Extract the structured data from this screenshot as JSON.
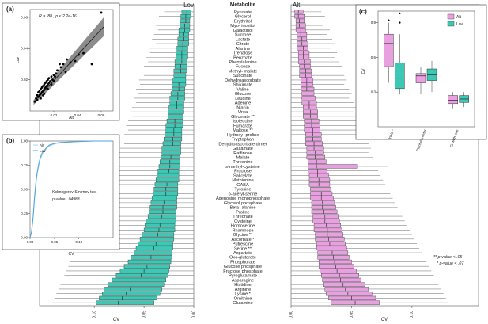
{
  "chart_data": [
    {
      "panel": "(a)",
      "type": "scatter",
      "xlabel": "Alt",
      "ylabel": "Lov",
      "annotation": "R = .88 , p < 2.2e-16",
      "xlim": [
        0,
        0.07
      ],
      "ylim": [
        0,
        0.065
      ],
      "xticks": [
        "0.02",
        "0.04",
        "0.06"
      ],
      "yticks": [
        "0.02",
        "0.04",
        "0.06"
      ],
      "fit": {
        "slope": 0.82,
        "intercept": 0.003
      },
      "points": [
        [
          0.004,
          0.006
        ],
        [
          0.005,
          0.008
        ],
        [
          0.006,
          0.007
        ],
        [
          0.006,
          0.01
        ],
        [
          0.007,
          0.009
        ],
        [
          0.007,
          0.012
        ],
        [
          0.008,
          0.01
        ],
        [
          0.008,
          0.013
        ],
        [
          0.009,
          0.011
        ],
        [
          0.009,
          0.014
        ],
        [
          0.01,
          0.012
        ],
        [
          0.01,
          0.015
        ],
        [
          0.011,
          0.013
        ],
        [
          0.011,
          0.016
        ],
        [
          0.012,
          0.014
        ],
        [
          0.012,
          0.017
        ],
        [
          0.013,
          0.015
        ],
        [
          0.013,
          0.018
        ],
        [
          0.014,
          0.016
        ],
        [
          0.014,
          0.019
        ],
        [
          0.015,
          0.017
        ],
        [
          0.015,
          0.02
        ],
        [
          0.016,
          0.018
        ],
        [
          0.016,
          0.021
        ],
        [
          0.017,
          0.019
        ],
        [
          0.018,
          0.022
        ],
        [
          0.019,
          0.02
        ],
        [
          0.02,
          0.023
        ],
        [
          0.021,
          0.022
        ],
        [
          0.022,
          0.024
        ],
        [
          0.023,
          0.026
        ],
        [
          0.025,
          0.03
        ],
        [
          0.026,
          0.028
        ],
        [
          0.028,
          0.03
        ],
        [
          0.03,
          0.025
        ],
        [
          0.031,
          0.033
        ],
        [
          0.034,
          0.031
        ],
        [
          0.038,
          0.032
        ],
        [
          0.041,
          0.036
        ],
        [
          0.045,
          0.037
        ],
        [
          0.052,
          0.03
        ],
        [
          0.06,
          0.063
        ],
        [
          0.012,
          0.011
        ],
        [
          0.009,
          0.008
        ],
        [
          0.015,
          0.014
        ],
        [
          0.018,
          0.017
        ],
        [
          0.02,
          0.019
        ],
        [
          0.011,
          0.01
        ]
      ]
    },
    {
      "panel": "(b)",
      "type": "line",
      "xlabel": "CV",
      "ylabel": "",
      "legend": [
        "Alt",
        "Lov"
      ],
      "xlim": [
        0,
        0.17
      ],
      "ylim": [
        0,
        1
      ],
      "xticks": [
        "0.00",
        "0.05",
        "0.10"
      ],
      "yticks": [
        "0.00",
        "0.25",
        "0.50",
        "0.75",
        "1.00"
      ],
      "test_name": "Kolmogorov-Smirnov test",
      "p_label": "p-value: .04983",
      "series": [
        {
          "name": "Alt",
          "x": [
            0,
            0.003,
            0.006,
            0.009,
            0.012,
            0.015,
            0.018,
            0.021,
            0.025,
            0.03,
            0.035,
            0.04,
            0.05,
            0.06,
            0.08,
            0.1,
            0.13,
            0.17
          ],
          "y": [
            0,
            0.05,
            0.18,
            0.38,
            0.55,
            0.67,
            0.75,
            0.81,
            0.86,
            0.9,
            0.93,
            0.95,
            0.97,
            0.98,
            0.99,
            0.995,
            1,
            1
          ]
        },
        {
          "name": "Lov",
          "x": [
            0,
            0.003,
            0.006,
            0.009,
            0.012,
            0.015,
            0.018,
            0.021,
            0.025,
            0.03,
            0.035,
            0.04,
            0.05,
            0.06,
            0.08,
            0.1,
            0.13,
            0.17
          ],
          "y": [
            0,
            0.06,
            0.2,
            0.41,
            0.58,
            0.69,
            0.77,
            0.83,
            0.88,
            0.91,
            0.94,
            0.96,
            0.975,
            0.985,
            0.99,
            0.995,
            1,
            1
          ]
        }
      ]
    },
    {
      "panel": "Lov",
      "type": "boxplot",
      "title": "Lov",
      "xlabel": "CV",
      "xlim_reversed": [
        0.155,
        0
      ],
      "xticks": [
        "0.10",
        "0.05",
        "0.00"
      ],
      "color": "#3cc8b4",
      "metabolites": [
        "Pyruvate",
        "Glycerol",
        "Erythritol",
        "Myo- inositol",
        "Galactinol",
        "Sucrose",
        "Lactate",
        "Citrate",
        "Alanine",
        "Trehalose",
        "Benzoate",
        "Phenylalanine",
        "Fucose",
        "Methyl- malate",
        "Succinate",
        "Dehydroascorbate",
        "Shikimate",
        "Valine",
        "Glucose",
        "Leucine",
        "Adenine",
        "Niacin",
        "Urea",
        "Glycerate",
        "Isoleucine",
        "Fumarate",
        "Maltose",
        "Hydroxy- proline",
        "Tryptophan",
        "Dehydroascorbate dimer",
        "Glutamate",
        "Raffinose",
        "Malate",
        "Threonine",
        "s-methyl-cysteine",
        "Fructose",
        "Salicylate",
        "Methionine",
        "GABA",
        "Tyrosine",
        "o-acetyl-serine",
        "Adenosine monophosphate",
        "Glycerol phosphate",
        "Beta- alanine",
        "Proline",
        "Threonate",
        "Cysteine",
        "Homoserine",
        "Rhamnose",
        "Glycine",
        "Ascorbate",
        "Putrescine",
        "Serine",
        "Aspartate",
        "Oxo-glutarate",
        "Phosphorate",
        "Glucose phosphate",
        "Fructose phosphate",
        "Pyroglutamate",
        "Asparagine",
        "Histidine",
        "Arginine",
        "Lysine",
        "Ornithine",
        "Glutamine"
      ],
      "stars": [
        "",
        "",
        "",
        "",
        "",
        "",
        "",
        "",
        "",
        "",
        "",
        "",
        "",
        "",
        "",
        "",
        "",
        "",
        "",
        "",
        "",
        "",
        "",
        "**",
        "",
        "",
        "**",
        "",
        "",
        "",
        "",
        "",
        "",
        "",
        "",
        "",
        "",
        "",
        "",
        "",
        "",
        "",
        "",
        "",
        "",
        "",
        "",
        "",
        "",
        "**",
        "*",
        "",
        "**",
        "",
        "",
        "",
        "",
        "",
        "",
        "",
        "",
        "",
        "*",
        "",
        ""
      ],
      "q1": [
        0.003,
        0.003,
        0.004,
        0.004,
        0.004,
        0.005,
        0.005,
        0.005,
        0.006,
        0.006,
        0.006,
        0.007,
        0.007,
        0.007,
        0.008,
        0.008,
        0.008,
        0.009,
        0.009,
        0.009,
        0.01,
        0.01,
        0.01,
        0.011,
        0.011,
        0.011,
        0.012,
        0.012,
        0.012,
        0.013,
        0.013,
        0.013,
        0.014,
        0.014,
        0.014,
        0.015,
        0.015,
        0.015,
        0.016,
        0.016,
        0.016,
        0.017,
        0.017,
        0.017,
        0.018,
        0.018,
        0.018,
        0.019,
        0.019,
        0.02,
        0.02,
        0.021,
        0.021,
        0.022,
        0.022,
        0.023,
        0.024,
        0.025,
        0.026,
        0.028,
        0.03,
        0.032,
        0.034,
        0.037,
        0.04
      ],
      "q3": [
        0.012,
        0.013,
        0.014,
        0.014,
        0.015,
        0.015,
        0.016,
        0.016,
        0.017,
        0.018,
        0.018,
        0.019,
        0.019,
        0.02,
        0.02,
        0.021,
        0.022,
        0.022,
        0.023,
        0.024,
        0.024,
        0.025,
        0.026,
        0.026,
        0.027,
        0.028,
        0.028,
        0.029,
        0.03,
        0.031,
        0.032,
        0.032,
        0.033,
        0.034,
        0.035,
        0.036,
        0.037,
        0.038,
        0.039,
        0.04,
        0.041,
        0.042,
        0.043,
        0.044,
        0.045,
        0.046,
        0.048,
        0.049,
        0.05,
        0.052,
        0.054,
        0.056,
        0.058,
        0.06,
        0.063,
        0.066,
        0.07,
        0.074,
        0.078,
        0.082,
        0.086,
        0.09,
        0.092,
        0.095,
        0.098
      ],
      "median": [
        0.007,
        0.008,
        0.008,
        0.009,
        0.009,
        0.01,
        0.01,
        0.011,
        0.011,
        0.012,
        0.012,
        0.012,
        0.013,
        0.013,
        0.014,
        0.014,
        0.015,
        0.015,
        0.016,
        0.016,
        0.017,
        0.017,
        0.018,
        0.018,
        0.019,
        0.019,
        0.02,
        0.02,
        0.021,
        0.021,
        0.022,
        0.022,
        0.023,
        0.024,
        0.024,
        0.025,
        0.026,
        0.026,
        0.027,
        0.028,
        0.028,
        0.029,
        0.03,
        0.031,
        0.031,
        0.032,
        0.033,
        0.034,
        0.035,
        0.036,
        0.037,
        0.038,
        0.04,
        0.041,
        0.043,
        0.045,
        0.047,
        0.05,
        0.053,
        0.056,
        0.06,
        0.064,
        0.068,
        0.072,
        0.076
      ],
      "whisker_hi": [
        0.03,
        0.035,
        0.032,
        0.038,
        0.036,
        0.04,
        0.042,
        0.038,
        0.045,
        0.044,
        0.048,
        0.046,
        0.05,
        0.052,
        0.05,
        0.055,
        0.054,
        0.058,
        0.056,
        0.06,
        0.058,
        0.062,
        0.064,
        0.062,
        0.066,
        0.068,
        0.066,
        0.07,
        0.072,
        0.07,
        0.074,
        0.076,
        0.078,
        0.08,
        0.082,
        0.084,
        0.086,
        0.088,
        0.09,
        0.092,
        0.094,
        0.096,
        0.098,
        0.1,
        0.102,
        0.104,
        0.106,
        0.108,
        0.11,
        0.112,
        0.114,
        0.116,
        0.118,
        0.12,
        0.122,
        0.124,
        0.126,
        0.128,
        0.13,
        0.132,
        0.134,
        0.136,
        0.138,
        0.14,
        0.142
      ]
    },
    {
      "panel": "Alt",
      "type": "boxplot",
      "title": "Alt",
      "xlabel": "CV",
      "xlim": [
        0,
        0.155
      ],
      "xticks": [
        "0.00",
        "0.05",
        "0.10"
      ],
      "color": "#e8a0e0",
      "legend_note_1": "** p-value < .05",
      "legend_note_2": "* p-value < .07",
      "q1": [
        0.003,
        0.003,
        0.004,
        0.004,
        0.004,
        0.005,
        0.005,
        0.005,
        0.005,
        0.006,
        0.006,
        0.006,
        0.007,
        0.007,
        0.007,
        0.008,
        0.008,
        0.008,
        0.009,
        0.009,
        0.009,
        0.01,
        0.01,
        0.01,
        0.011,
        0.011,
        0.011,
        0.012,
        0.012,
        0.012,
        0.013,
        0.013,
        0.013,
        0.014,
        0.014,
        0.014,
        0.015,
        0.015,
        0.015,
        0.016,
        0.016,
        0.016,
        0.017,
        0.017,
        0.017,
        0.018,
        0.018,
        0.019,
        0.019,
        0.02,
        0.02,
        0.021,
        0.021,
        0.022,
        0.022,
        0.023,
        0.023,
        0.024,
        0.025,
        0.026,
        0.027,
        0.028,
        0.029,
        0.031,
        0.033
      ],
      "q3": [
        0.01,
        0.011,
        0.011,
        0.012,
        0.012,
        0.013,
        0.013,
        0.014,
        0.014,
        0.015,
        0.015,
        0.016,
        0.016,
        0.017,
        0.017,
        0.018,
        0.018,
        0.019,
        0.019,
        0.02,
        0.021,
        0.021,
        0.022,
        0.022,
        0.023,
        0.024,
        0.024,
        0.025,
        0.025,
        0.026,
        0.027,
        0.027,
        0.028,
        0.029,
        0.055,
        0.03,
        0.031,
        0.032,
        0.032,
        0.033,
        0.034,
        0.035,
        0.036,
        0.037,
        0.038,
        0.039,
        0.04,
        0.041,
        0.042,
        0.043,
        0.044,
        0.045,
        0.046,
        0.047,
        0.048,
        0.05,
        0.052,
        0.054,
        0.056,
        0.058,
        0.061,
        0.064,
        0.067,
        0.07,
        0.073
      ],
      "median": [
        0.006,
        0.006,
        0.007,
        0.007,
        0.008,
        0.008,
        0.009,
        0.009,
        0.01,
        0.01,
        0.01,
        0.011,
        0.011,
        0.012,
        0.012,
        0.013,
        0.013,
        0.013,
        0.014,
        0.014,
        0.015,
        0.015,
        0.016,
        0.016,
        0.017,
        0.017,
        0.018,
        0.018,
        0.018,
        0.019,
        0.019,
        0.02,
        0.02,
        0.021,
        0.021,
        0.022,
        0.022,
        0.023,
        0.023,
        0.024,
        0.025,
        0.025,
        0.026,
        0.026,
        0.027,
        0.028,
        0.028,
        0.029,
        0.03,
        0.03,
        0.031,
        0.032,
        0.033,
        0.034,
        0.035,
        0.036,
        0.037,
        0.038,
        0.04,
        0.041,
        0.043,
        0.045,
        0.047,
        0.05,
        0.053
      ],
      "whisker_hi": [
        0.025,
        0.028,
        0.03,
        0.026,
        0.032,
        0.03,
        0.034,
        0.036,
        0.033,
        0.038,
        0.036,
        0.04,
        0.042,
        0.04,
        0.044,
        0.046,
        0.044,
        0.048,
        0.05,
        0.048,
        0.052,
        0.054,
        0.052,
        0.056,
        0.058,
        0.056,
        0.06,
        0.062,
        0.06,
        0.064,
        0.066,
        0.064,
        0.068,
        0.07,
        0.08,
        0.072,
        0.074,
        0.076,
        0.078,
        0.08,
        0.082,
        0.084,
        0.086,
        0.088,
        0.09,
        0.092,
        0.094,
        0.096,
        0.098,
        0.1,
        0.102,
        0.104,
        0.106,
        0.108,
        0.11,
        0.112,
        0.114,
        0.116,
        0.118,
        0.12,
        0.122,
        0.124,
        0.126,
        0.128,
        0.13
      ]
    },
    {
      "panel": "(c)",
      "type": "boxplot",
      "ylabel": "CV",
      "ylim": [
        0,
        1.0
      ],
      "yticks": [
        "0.3",
        "0.6",
        "0.9"
      ],
      "categories": [
        "Yield *",
        "Plant diameter",
        "Growth rate"
      ],
      "legend": [
        "Alt",
        "Lov"
      ],
      "series": [
        {
          "name": "Alt",
          "color": "#e8a0e0",
          "boxes": [
            {
              "lo": 0.38,
              "q1": 0.52,
              "med": 0.72,
              "q3": 0.8,
              "hi": 0.9,
              "out": [
                0.92
              ]
            },
            {
              "lo": 0.28,
              "q1": 0.38,
              "med": 0.44,
              "q3": 0.46,
              "hi": 0.52,
              "out": []
            },
            {
              "lo": 0.16,
              "q1": 0.2,
              "med": 0.23,
              "q3": 0.27,
              "hi": 0.3,
              "out": []
            }
          ]
        },
        {
          "name": "Lov",
          "color": "#3cc8b4",
          "boxes": [
            {
              "lo": 0.28,
              "q1": 0.33,
              "med": 0.42,
              "q3": 0.55,
              "hi": 0.8,
              "out": [
                0.9,
                0.98
              ]
            },
            {
              "lo": 0.3,
              "q1": 0.4,
              "med": 0.45,
              "q3": 0.5,
              "hi": 0.57,
              "out": []
            },
            {
              "lo": 0.17,
              "q1": 0.21,
              "med": 0.24,
              "q3": 0.27,
              "hi": 0.3,
              "out": []
            }
          ]
        }
      ]
    }
  ],
  "labels": {
    "panel_a": "(a)",
    "panel_b": "(b)",
    "panel_c": "(c)",
    "metabolite_header": "Metabolite",
    "lov_title": "Lov",
    "alt_title": "Alt"
  },
  "colors": {
    "lov": "#3cc8b4",
    "alt": "#e8a0e0",
    "line": "#222222",
    "grid": "#dddddd"
  }
}
